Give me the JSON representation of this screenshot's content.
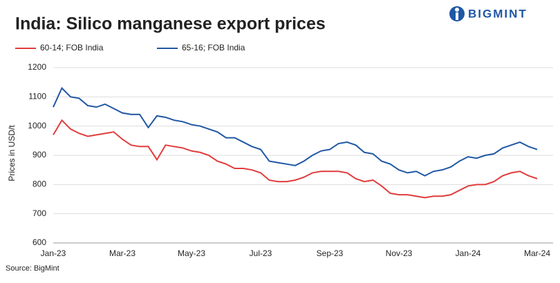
{
  "logo": "BIGMINT",
  "chart_data": {
    "type": "line",
    "title": "India: Silico manganese export prices",
    "y_label": "Prices in USD/t",
    "source": "Source: BigMint",
    "categories": [
      "Jan-23",
      null,
      null,
      null,
      null,
      null,
      null,
      null,
      "Mar-23",
      null,
      null,
      null,
      null,
      null,
      null,
      null,
      "May-23",
      null,
      null,
      null,
      null,
      null,
      null,
      null,
      "Jul-23",
      null,
      null,
      null,
      null,
      null,
      null,
      null,
      "Sep-23",
      null,
      null,
      null,
      null,
      null,
      null,
      null,
      "Nov-23",
      null,
      null,
      null,
      null,
      null,
      null,
      null,
      "Jan-24",
      null,
      null,
      null,
      null,
      null,
      null,
      null,
      "Mar-24"
    ],
    "series": [
      {
        "name": "60-14; FOB India",
        "color": "#e03c3c",
        "values": [
          970,
          1020,
          990,
          975,
          965,
          970,
          975,
          980,
          955,
          935,
          930,
          930,
          885,
          935,
          930,
          925,
          915,
          910,
          900,
          880,
          870,
          855,
          855,
          850,
          840,
          815,
          810,
          810,
          815,
          825,
          840,
          845,
          845,
          845,
          840,
          820,
          810,
          815,
          795,
          770,
          765,
          765,
          760,
          755,
          760,
          760,
          765,
          780,
          795,
          800,
          800,
          810,
          830,
          840,
          845,
          830,
          820
        ]
      },
      {
        "name": "65-16; FOB India",
        "color": "#1f57a4",
        "values": [
          1065,
          1130,
          1100,
          1095,
          1070,
          1065,
          1075,
          1060,
          1045,
          1040,
          1040,
          995,
          1035,
          1030,
          1020,
          1015,
          1005,
          1000,
          990,
          980,
          960,
          960,
          945,
          930,
          920,
          880,
          875,
          870,
          865,
          880,
          900,
          915,
          920,
          940,
          945,
          935,
          910,
          905,
          880,
          870,
          850,
          840,
          845,
          830,
          845,
          850,
          860,
          880,
          895,
          890,
          900,
          905,
          925,
          935,
          945,
          930,
          920
        ]
      }
    ],
    "ylim": [
      600,
      1200
    ],
    "yticks": [
      600,
      700,
      800,
      900,
      1000,
      1100,
      1200
    ],
    "grid": true,
    "legend": "top-left"
  }
}
